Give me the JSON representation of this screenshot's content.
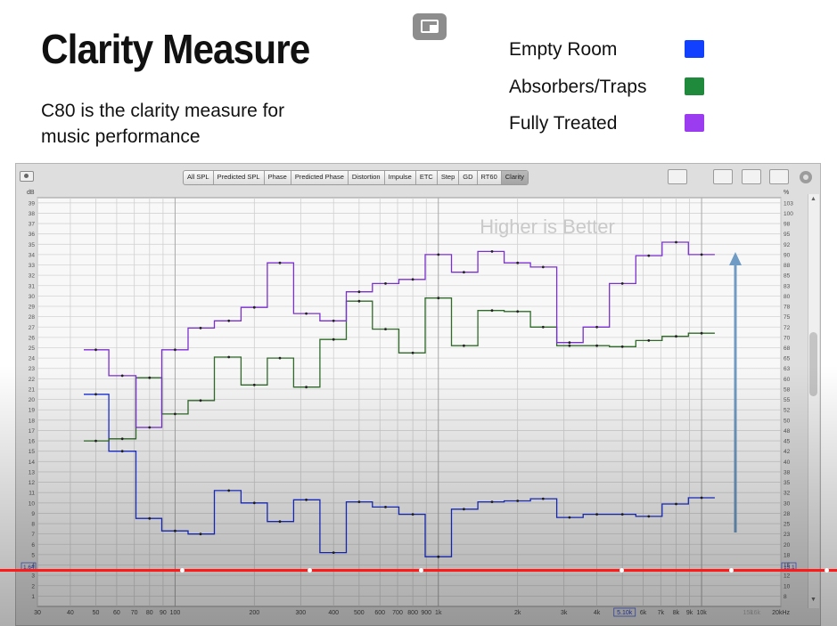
{
  "slide": {
    "title": "Clarity Measure",
    "subtitle": "C80 is the clarity measure for music performance",
    "legend": [
      {
        "label": "Empty Room",
        "color": "#1240ff"
      },
      {
        "label": "Absorbers/Traps",
        "color": "#1f8a3c"
      },
      {
        "label": "Fully Treated",
        "color": "#9b3cf0"
      }
    ]
  },
  "app": {
    "tabs": [
      "All SPL",
      "Predicted SPL",
      "Phase",
      "Predicted Phase",
      "Distortion",
      "Impulse",
      "ETC",
      "Step",
      "GD",
      "RT60",
      "Clarity"
    ],
    "active_tab": "Clarity",
    "left_unit": "dB",
    "right_unit": "%",
    "left_bottom_box": "1.64",
    "right_bottom_box": "15.1",
    "cursor_freq_box": "5.10k"
  },
  "chart_data": {
    "type": "line",
    "title": "",
    "annotation": "Higher is Better",
    "xlabel": "",
    "ylabel": "dB",
    "x_scale": "log",
    "xlim": [
      30,
      20000
    ],
    "ylim": [
      0,
      39.5
    ],
    "grid": true,
    "x_ticks": [
      "30",
      "40",
      "50",
      "60",
      "70",
      "80",
      "90",
      "100",
      "200",
      "300",
      "400",
      "500",
      "600",
      "700",
      "800",
      "900",
      "1k",
      "2k",
      "3k",
      "4k",
      "5.10k",
      "6k",
      "7k",
      "8k",
      "9k",
      "10k",
      "15k",
      "16k",
      "20kHz"
    ],
    "y_ticks_left": [
      39,
      38,
      37,
      36,
      35,
      34,
      33,
      32,
      31,
      30,
      29,
      28,
      27,
      26,
      25,
      24,
      23,
      22,
      21,
      20,
      19,
      18,
      17,
      16,
      15,
      14,
      13,
      12,
      11,
      10,
      9,
      8,
      7,
      6,
      5,
      4,
      3,
      2,
      1
    ],
    "y_ticks_right": [
      103,
      100,
      98,
      95,
      92,
      90,
      88,
      85,
      83,
      80,
      78,
      75,
      72,
      70,
      68,
      65,
      63,
      60,
      58,
      55,
      52,
      50,
      48,
      45,
      42,
      40,
      38,
      35,
      32,
      30,
      28,
      25,
      23,
      20,
      18,
      15,
      12,
      10,
      8
    ],
    "band_centers": [
      50,
      63,
      80,
      100,
      125,
      160,
      200,
      250,
      315,
      400,
      500,
      630,
      800,
      1000,
      1250,
      1600,
      2000,
      2500,
      3150,
      4000,
      5000,
      6300,
      8000,
      10000
    ],
    "band_edges": [
      45,
      56,
      71,
      89,
      112,
      141,
      178,
      224,
      282,
      355,
      447,
      562,
      708,
      891,
      1122,
      1413,
      1778,
      2239,
      2818,
      3548,
      4467,
      5623,
      7079,
      8913,
      11220
    ],
    "series": [
      {
        "name": "Empty Room",
        "color": "#1a2fd6",
        "values": [
          20.5,
          15.0,
          8.5,
          7.3,
          7.0,
          11.2,
          10.0,
          8.2,
          10.3,
          5.2,
          10.1,
          9.6,
          8.9,
          4.8,
          9.4,
          10.1,
          10.2,
          10.4,
          8.6,
          8.9,
          8.9,
          8.7,
          9.9,
          10.5
        ]
      },
      {
        "name": "Absorbers/Traps",
        "color": "#2f6a28",
        "values": [
          16.0,
          16.2,
          22.1,
          18.6,
          19.9,
          24.1,
          21.4,
          24.0,
          21.2,
          25.8,
          29.5,
          26.8,
          24.5,
          29.8,
          25.2,
          28.6,
          28.5,
          27.0,
          25.2,
          25.2,
          25.1,
          25.7,
          26.1,
          26.4
        ]
      },
      {
        "name": "Fully Treated",
        "color": "#7a2fd0",
        "values": [
          24.8,
          22.3,
          17.3,
          24.8,
          26.9,
          27.6,
          28.9,
          33.2,
          28.3,
          27.6,
          30.4,
          31.2,
          31.6,
          34.0,
          32.3,
          34.3,
          33.2,
          32.8,
          25.5,
          27.0,
          31.2,
          33.9,
          35.2,
          34.0
        ]
      }
    ]
  }
}
